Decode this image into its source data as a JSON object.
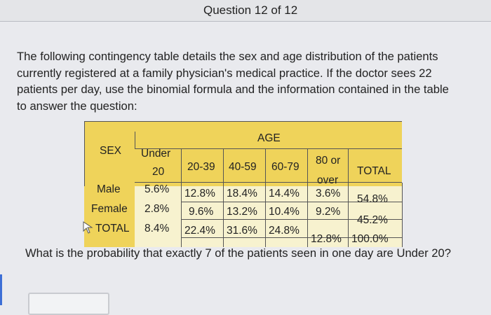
{
  "header": {
    "title": "Question 12 of 12"
  },
  "paragraph": {
    "line1": "The following contingency table details the sex and age distribution of the patients",
    "line2": "currently registered at a family physician's medical practice. If the doctor sees 22",
    "line3": "patients per day, use the binomial formula and the information contained in the table",
    "line4": "to answer the question:"
  },
  "table": {
    "age_label": "AGE",
    "sex_label": "SEX",
    "col_headers": {
      "under20_a": "Under",
      "under20_b": "20",
      "c20_39": "20-39",
      "c40_59": "40-59",
      "c60_79": "60-79",
      "over80_a": "80 or",
      "over80_b": "over",
      "total": "TOTAL"
    },
    "rows": [
      {
        "label": "Male",
        "values": [
          "5.6%",
          "12.8%",
          "18.4%",
          "14.4%",
          "3.6%",
          "54.8%"
        ]
      },
      {
        "label": "Female",
        "values": [
          "2.8%",
          "9.6%",
          "13.2%",
          "10.4%",
          "9.2%",
          "45.2%"
        ]
      },
      {
        "label": "TOTAL",
        "values": [
          "8.4%",
          "22.4%",
          "31.6%",
          "24.8%",
          "12.8%",
          "100.0%"
        ]
      }
    ]
  },
  "question": {
    "text": "What is the probability that exactly 7 of the patients seen in one day are Under 20?"
  },
  "answer": {
    "value": ""
  }
}
